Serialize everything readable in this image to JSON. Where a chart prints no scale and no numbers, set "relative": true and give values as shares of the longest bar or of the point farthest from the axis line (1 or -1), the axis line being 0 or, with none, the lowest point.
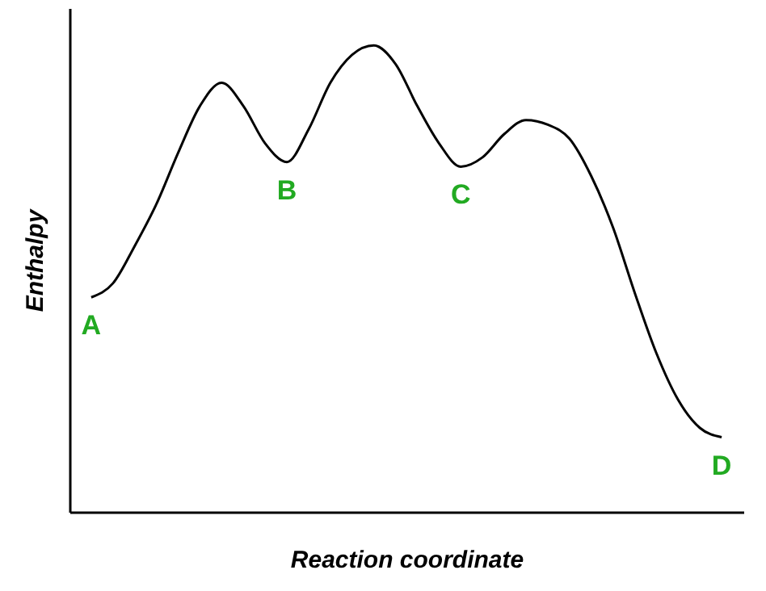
{
  "chart_data": {
    "type": "line",
    "relative": true,
    "xlabel": "Reaction coordinate",
    "ylabel": "Enthalpy",
    "color": "#000000",
    "marker": "none",
    "grid": false,
    "tick_labels": false,
    "categories": [
      null,
      null,
      null,
      null,
      null,
      null,
      null,
      null,
      null,
      null,
      null,
      null,
      null,
      null,
      null,
      null,
      null,
      null,
      null,
      null,
      null,
      null,
      null,
      null,
      null,
      null,
      null,
      null,
      null,
      null
    ],
    "values": [
      0.46,
      0.49,
      0.57,
      0.66,
      0.77,
      0.87,
      0.92,
      0.87,
      0.79,
      0.75,
      0.82,
      0.92,
      0.98,
      1,
      0.96,
      0.87,
      0.79,
      0.74,
      0.76,
      0.81,
      0.84,
      0.83,
      0.8,
      0.72,
      0.61,
      0.47,
      0.34,
      0.24,
      0.18,
      0.16
    ],
    "annotations": [
      {
        "text": "A",
        "y": 0.46
      },
      {
        "text": "B",
        "y": 0.75
      },
      {
        "text": "C",
        "y": 0.74
      },
      {
        "text": "D",
        "y": 0.16
      }
    ]
  }
}
